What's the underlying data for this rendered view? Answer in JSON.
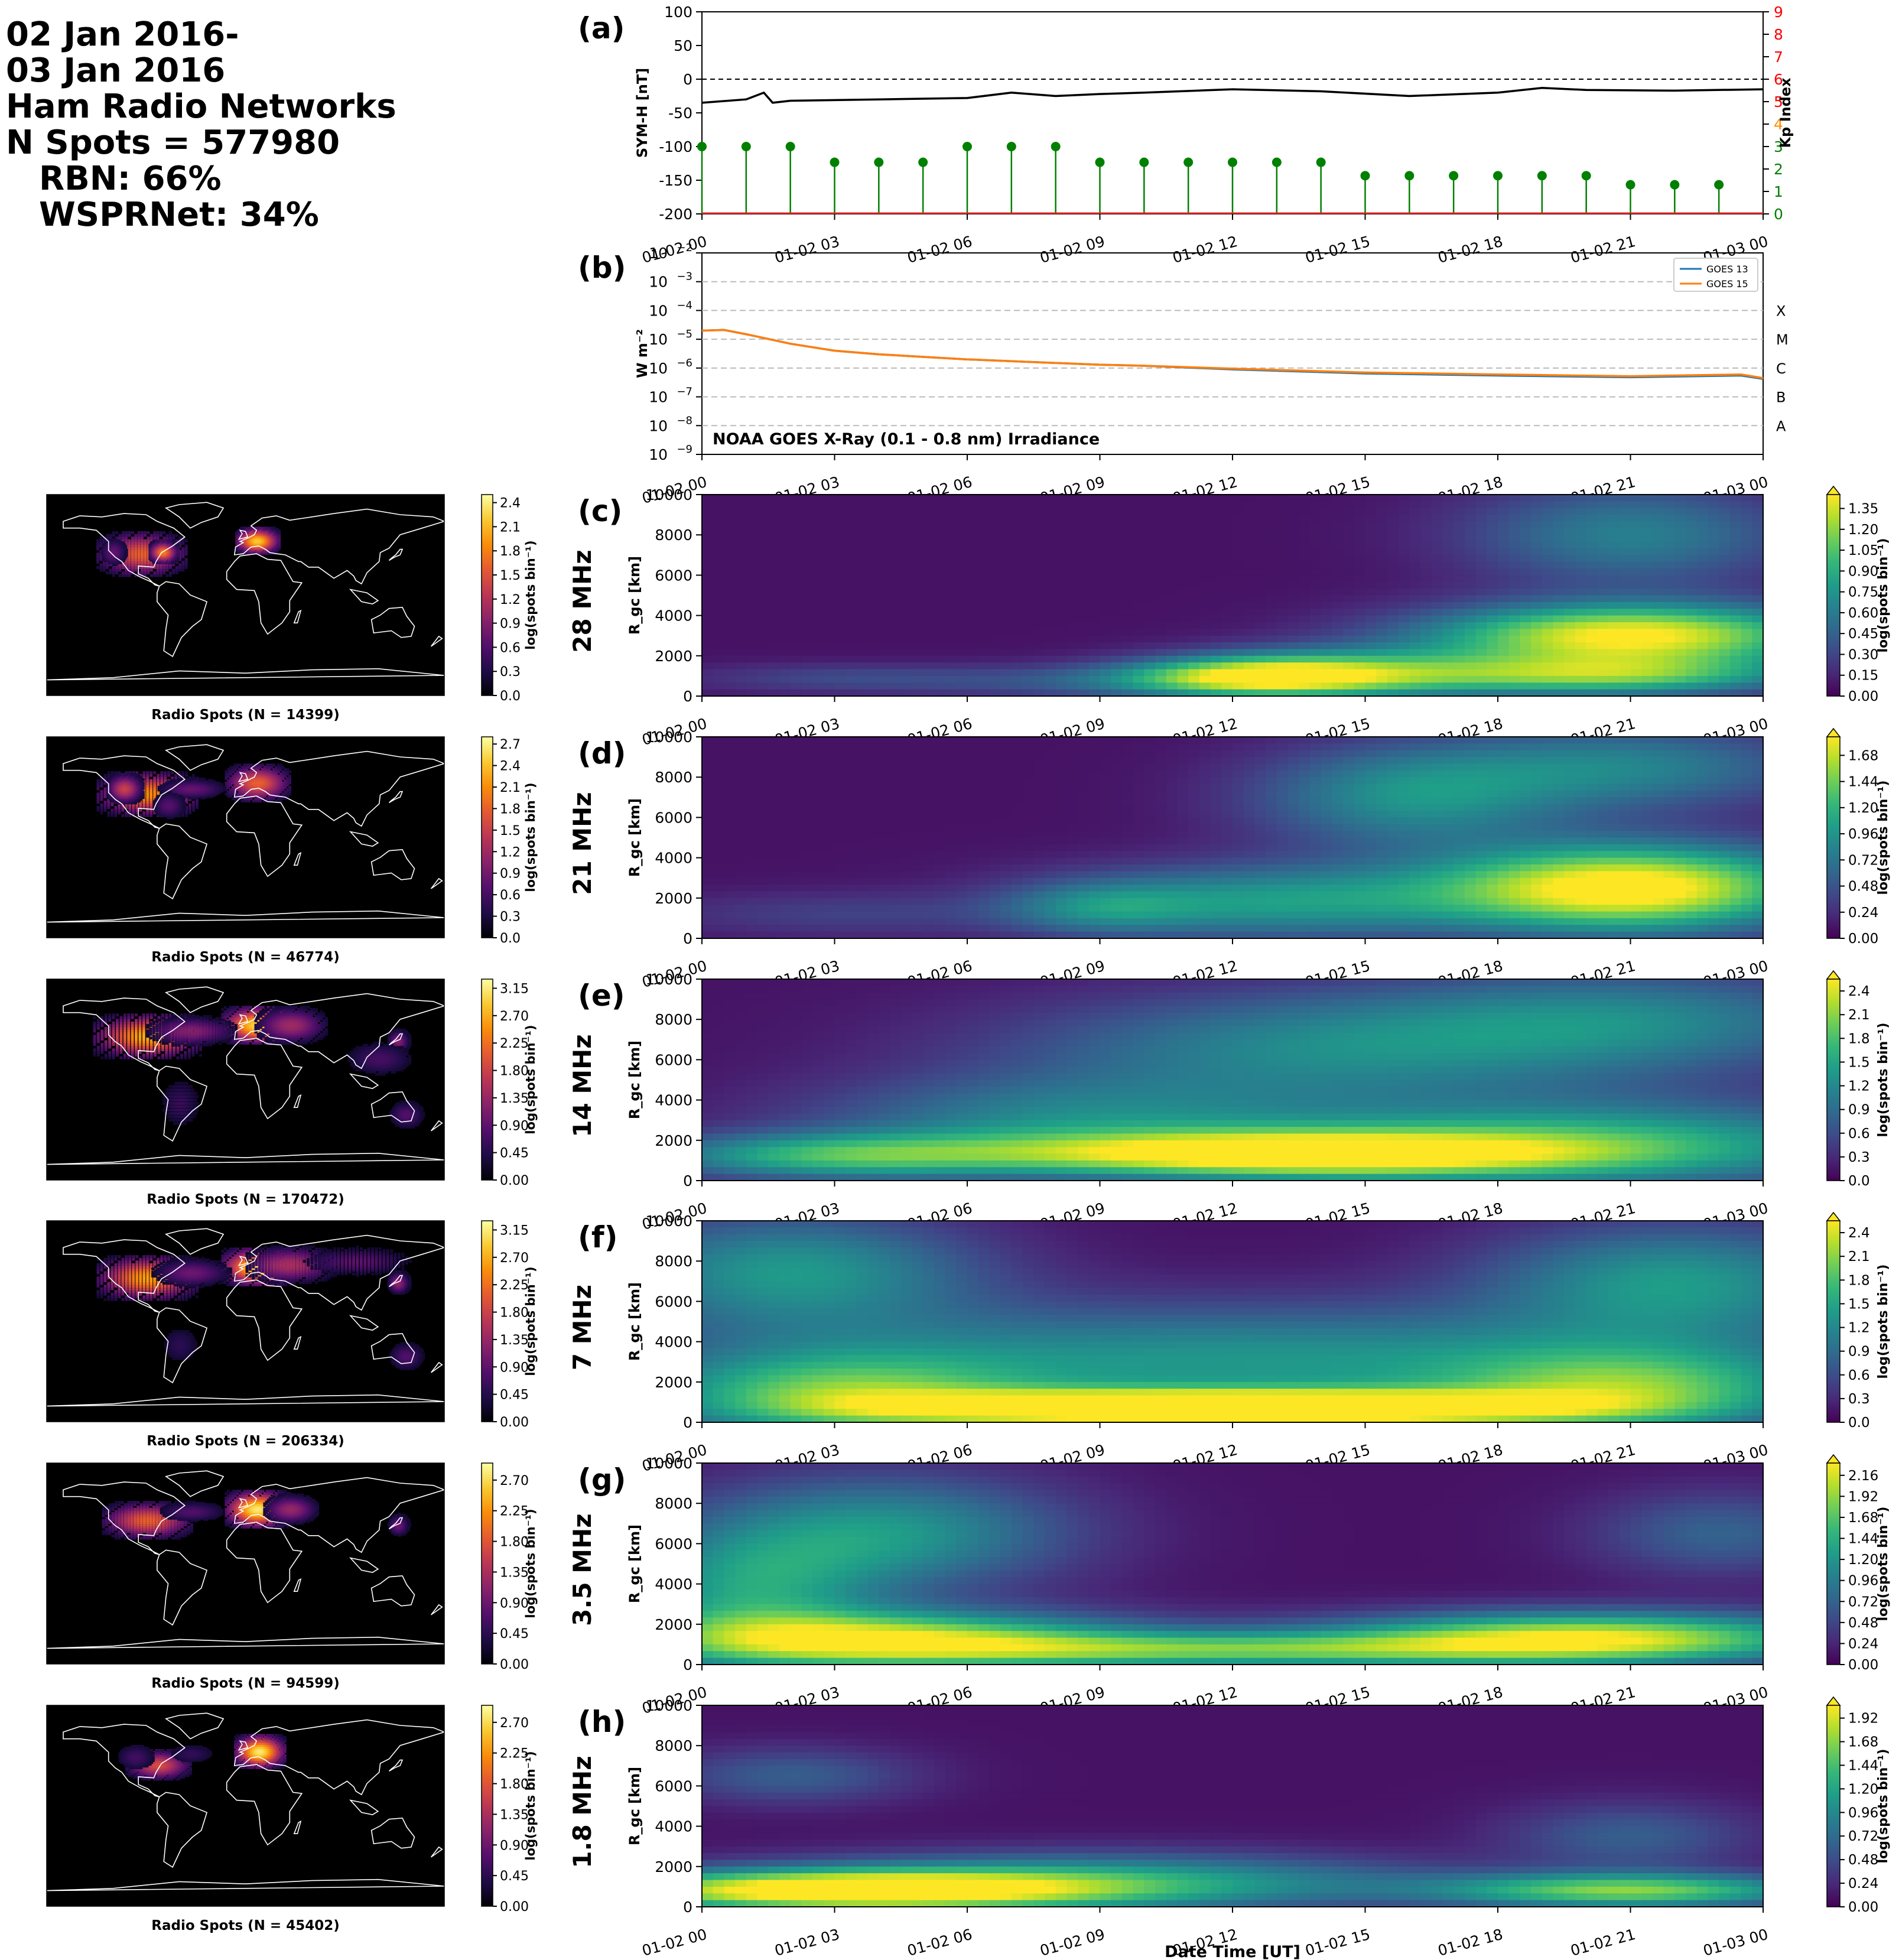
{
  "header": {
    "lines": [
      "02 Jan 2016-",
      "03 Jan 2016",
      "Ham Radio Networks",
      "N Spots = 577980",
      "RBN: 66%",
      "WSPRNet: 34%"
    ]
  },
  "colors": {
    "symh": "#000000",
    "kp_green": "#008000",
    "kp_orange": "#ff8c00",
    "kp_red": "#ff0000",
    "goes13": "#1f77b4",
    "goes15": "#ff7f0e",
    "viridis_low": "#440154",
    "viridis_high": "#fde725",
    "inferno_low": "#000004",
    "inferno_high": "#fcffa4",
    "map_ocean": "#000000",
    "coastline": "#ffffff"
  },
  "time_axis": {
    "tick_labels": [
      "01-02 00",
      "01-02 03",
      "01-02 06",
      "01-02 09",
      "01-02 12",
      "01-02 15",
      "01-02 18",
      "01-02 21",
      "01-03 00"
    ],
    "xlabel": "Date Time [UT]"
  },
  "chart_data": [
    {
      "id": "a",
      "panel_label": "(a)",
      "type": "line",
      "ylabel": "SYM-H [nT]",
      "ylim": [
        -200,
        100
      ],
      "yticks": [
        100,
        50,
        0,
        -50,
        -100,
        -150,
        -200
      ],
      "y2label": "Kp Index",
      "y2lim": [
        0,
        9
      ],
      "y2ticks": [
        9,
        8,
        7,
        6,
        5,
        4,
        3,
        2,
        1,
        0
      ],
      "reference_line": 0,
      "symh": {
        "x_hours": [
          0,
          1,
          1.4,
          1.6,
          2,
          4,
          6,
          7,
          8,
          9,
          10,
          12,
          14,
          16,
          18,
          19,
          20,
          22,
          24
        ],
        "values": [
          -35,
          -30,
          -20,
          -35,
          -32,
          -30,
          -28,
          -20,
          -25,
          -22,
          -20,
          -15,
          -18,
          -25,
          -20,
          -13,
          -16,
          -17,
          -15
        ]
      },
      "kp": {
        "x_hours": [
          0,
          1,
          2,
          3,
          4,
          5,
          6,
          7,
          8,
          9,
          10,
          11,
          12,
          13,
          14,
          15,
          16,
          17,
          18,
          19,
          20,
          21,
          22,
          23
        ],
        "values": [
          3.0,
          3.0,
          3.0,
          2.3,
          2.3,
          2.3,
          3.0,
          3.0,
          3.0,
          2.3,
          2.3,
          2.3,
          2.3,
          2.3,
          2.3,
          1.7,
          1.7,
          1.7,
          1.7,
          1.7,
          1.7,
          1.3,
          1.3,
          1.3
        ]
      }
    },
    {
      "id": "b",
      "panel_label": "(b)",
      "type": "line",
      "ylabel": "W m$^{-2}$",
      "ylabel_display": "W m⁻²",
      "log_scale": true,
      "ylim": [
        1e-09,
        0.01
      ],
      "ytick_exponents": [
        -2,
        -3,
        -4,
        -5,
        -6,
        -7,
        -8,
        -9
      ],
      "flare_classes": [
        "X",
        "M",
        "C",
        "B",
        "A"
      ],
      "annotation": "NOAA GOES X-Ray (0.1 - 0.8 nm) Irradiance",
      "legend": [
        "GOES 13",
        "GOES 15"
      ],
      "legend_placement": "top-right",
      "series": [
        {
          "name": "GOES 13",
          "x_hours": [
            0,
            0.5,
            1,
            2,
            3,
            4,
            6,
            8,
            9,
            10,
            12,
            15,
            18,
            21,
            23.5,
            24
          ],
          "values": [
            2e-05,
            2.1e-05,
            1.5e-05,
            7e-06,
            4e-06,
            3e-06,
            2e-06,
            1.5e-06,
            1.3e-06,
            1.2e-06,
            9e-07,
            6.5e-07,
            5.5e-07,
            4.8e-07,
            5.5e-07,
            4.2e-07
          ]
        },
        {
          "name": "GOES 15",
          "x_hours": [
            0,
            0.5,
            1,
            2,
            3,
            4,
            6,
            8,
            9,
            10,
            12,
            15,
            18,
            21,
            23.5,
            24
          ],
          "values": [
            2e-05,
            2.1e-05,
            1.5e-05,
            7e-06,
            4e-06,
            3e-06,
            2e-06,
            1.5e-06,
            1.3e-06,
            1.2e-06,
            9.5e-07,
            7e-07,
            6e-07,
            5.2e-07,
            6e-07,
            4.5e-07
          ]
        }
      ]
    },
    {
      "id": "c",
      "panel_label": "(c)",
      "band": "28 MHz",
      "type": "heatmap",
      "ylabel": "R_gc [km]",
      "ylim": [
        0,
        10000
      ],
      "yticks": [
        0,
        2000,
        4000,
        6000,
        8000,
        10000
      ],
      "colorbar_label": "log(spots bin⁻¹)",
      "colorbar_ticks": [
        "0.00",
        "0.15",
        "0.30",
        "0.45",
        "0.60",
        "0.75",
        "0.90",
        "1.05",
        "1.20",
        "1.35"
      ],
      "colorbar_max": 1.45,
      "blobs": [
        [
          12.5,
          1000,
          2.0,
          700,
          1.0
        ],
        [
          15,
          1200,
          2.5,
          900,
          0.6
        ],
        [
          21,
          3000,
          3.2,
          1100,
          1.4
        ],
        [
          20.5,
          1000,
          3.0,
          700,
          0.9
        ],
        [
          21,
          8000,
          2.6,
          1800,
          0.55
        ],
        [
          10.5,
          700,
          4.0,
          600,
          0.35
        ],
        [
          3,
          900,
          2.5,
          500,
          0.2
        ]
      ]
    },
    {
      "id": "d",
      "panel_label": "(d)",
      "band": "21 MHz",
      "type": "heatmap",
      "ylabel": "R_gc [km]",
      "ylim": [
        0,
        10000
      ],
      "yticks": [
        0,
        2000,
        4000,
        6000,
        8000,
        10000
      ],
      "colorbar_label": "log(spots bin⁻¹)",
      "colorbar_ticks": [
        "0.00",
        "0.24",
        "0.48",
        "0.72",
        "0.96",
        "1.20",
        "1.44",
        "1.68"
      ],
      "colorbar_max": 1.85,
      "blobs": [
        [
          21,
          2500,
          3.0,
          1500,
          1.9
        ],
        [
          13,
          1800,
          3.5,
          1300,
          0.9
        ],
        [
          16,
          7000,
          2.5,
          1800,
          0.8
        ],
        [
          21,
          8500,
          3.0,
          1500,
          0.7
        ],
        [
          3,
          1200,
          3.0,
          800,
          0.25
        ],
        [
          9,
          1500,
          1.5,
          900,
          0.5
        ]
      ]
    },
    {
      "id": "e",
      "panel_label": "(e)",
      "band": "14 MHz",
      "type": "heatmap",
      "ylabel": "R_gc [km]",
      "ylim": [
        0,
        10000
      ],
      "yticks": [
        0,
        2000,
        4000,
        6000,
        8000,
        10000
      ],
      "colorbar_label": "log(spots bin⁻¹)",
      "colorbar_ticks": [
        "0.0",
        "0.3",
        "0.6",
        "0.9",
        "1.2",
        "1.5",
        "1.8",
        "2.1",
        "2.4"
      ],
      "colorbar_max": 2.55,
      "blobs": [
        [
          13,
          1300,
          4.5,
          800,
          2.4
        ],
        [
          3,
          1200,
          3.0,
          800,
          1.4
        ],
        [
          20,
          1800,
          5.0,
          1500,
          1.5
        ],
        [
          14,
          6500,
          5.0,
          2000,
          1.0
        ],
        [
          21,
          8000,
          4.0,
          1800,
          0.9
        ],
        [
          8,
          3000,
          4.0,
          1500,
          0.9
        ]
      ]
    },
    {
      "id": "f",
      "panel_label": "(f)",
      "band": "7 MHz",
      "type": "heatmap",
      "ylabel": "R_gc [km]",
      "ylim": [
        0,
        10000
      ],
      "yticks": [
        0,
        2000,
        4000,
        6000,
        8000,
        10000
      ],
      "colorbar_label": "log(spots bin⁻¹)",
      "colorbar_ticks": [
        "0.0",
        "0.3",
        "0.6",
        "0.9",
        "1.2",
        "1.5",
        "1.8",
        "2.1",
        "2.4"
      ],
      "colorbar_max": 2.55,
      "blobs": [
        [
          9,
          700,
          3.5,
          600,
          2.3
        ],
        [
          15,
          700,
          3.5,
          600,
          2.4
        ],
        [
          3,
          1200,
          3.0,
          1500,
          1.5
        ],
        [
          12,
          3000,
          8.0,
          2000,
          1.2
        ],
        [
          2,
          7500,
          3.0,
          2000,
          1.2
        ],
        [
          22,
          7000,
          3.0,
          2000,
          1.2
        ],
        [
          21,
          1500,
          3.0,
          1500,
          1.5
        ]
      ]
    },
    {
      "id": "g",
      "panel_label": "(g)",
      "band": "3.5 MHz",
      "type": "heatmap",
      "ylabel": "R_gc [km]",
      "ylim": [
        0,
        10000
      ],
      "yticks": [
        0,
        2000,
        4000,
        6000,
        8000,
        10000
      ],
      "colorbar_label": "log(spots bin⁻¹)",
      "colorbar_ticks": [
        "0.00",
        "0.24",
        "0.48",
        "0.72",
        "0.96",
        "1.20",
        "1.44",
        "1.68",
        "1.92",
        "2.16"
      ],
      "colorbar_max": 2.3,
      "blobs": [
        [
          4,
          1200,
          4.0,
          1000,
          2.0
        ],
        [
          20,
          1300,
          4.0,
          900,
          2.1
        ],
        [
          12,
          700,
          5.0,
          600,
          1.3
        ],
        [
          4,
          6500,
          3.0,
          2000,
          1.1
        ],
        [
          1,
          3500,
          2.0,
          2000,
          1.0
        ],
        [
          23,
          6500,
          2.0,
          1500,
          0.6
        ]
      ]
    },
    {
      "id": "h",
      "panel_label": "(h)",
      "band": "1.8 MHz",
      "type": "heatmap",
      "ylabel": "R_gc [km]",
      "ylim": [
        0,
        10000
      ],
      "yticks": [
        0,
        2000,
        4000,
        6000,
        8000,
        10000
      ],
      "colorbar_label": "log(spots bin⁻¹)",
      "colorbar_ticks": [
        "0.00",
        "0.24",
        "0.48",
        "0.72",
        "0.96",
        "1.20",
        "1.44",
        "1.68",
        "1.92"
      ],
      "colorbar_max": 2.05,
      "blobs": [
        [
          3,
          800,
          4.0,
          700,
          2.0
        ],
        [
          21,
          800,
          3.0,
          600,
          1.5
        ],
        [
          9,
          1200,
          5.0,
          1000,
          1.1
        ],
        [
          2,
          6500,
          2.0,
          1000,
          0.5
        ],
        [
          21,
          3500,
          2.0,
          1200,
          0.5
        ]
      ]
    },
    {
      "id": "map-c",
      "type": "heatmap",
      "title": "Radio Spots (N = 14399)",
      "colormap": "inferno",
      "colorbar_label": "log(spots bin⁻¹)",
      "colorbar_ticks": [
        "0.0",
        "0.3",
        "0.6",
        "0.9",
        "1.2",
        "1.5",
        "1.8",
        "2.1",
        "2.4"
      ],
      "colorbar_max": 2.5,
      "hotspots": [
        [
          -95,
          38,
          25,
          12,
          1.6
        ],
        [
          -75,
          40,
          8,
          6,
          1.8
        ],
        [
          10,
          50,
          12,
          7,
          2.2
        ],
        [
          -120,
          40,
          8,
          8,
          0.7
        ]
      ]
    },
    {
      "id": "map-d",
      "type": "heatmap",
      "title": "Radio Spots (N = 46774)",
      "colormap": "inferno",
      "colorbar_label": "log(spots bin⁻¹)",
      "colorbar_ticks": [
        "0.0",
        "0.3",
        "0.6",
        "0.9",
        "1.2",
        "1.5",
        "1.8",
        "2.1",
        "2.4",
        "2.7"
      ],
      "colorbar_max": 2.8,
      "hotspots": [
        [
          -90,
          40,
          28,
          12,
          2.1
        ],
        [
          -110,
          45,
          10,
          8,
          1.5
        ],
        [
          10,
          50,
          18,
          10,
          1.8
        ],
        [
          -50,
          45,
          20,
          6,
          0.8
        ],
        [
          -70,
          30,
          10,
          8,
          0.7
        ]
      ]
    },
    {
      "id": "map-e",
      "type": "heatmap",
      "title": "Radio Spots (N = 170472)",
      "colormap": "inferno",
      "colorbar_label": "log(spots bin⁻¹)",
      "colorbar_ticks": [
        "0.00",
        "0.45",
        "0.90",
        "1.35",
        "1.80",
        "2.25",
        "2.70",
        "3.15"
      ],
      "colorbar_max": 3.3,
      "hotspots": [
        [
          -90,
          40,
          30,
          12,
          2.7
        ],
        [
          10,
          50,
          20,
          10,
          3.0
        ],
        [
          40,
          50,
          20,
          10,
          1.4
        ],
        [
          138,
          36,
          6,
          6,
          1.2
        ],
        [
          -50,
          45,
          25,
          8,
          1.2
        ],
        [
          -60,
          -20,
          12,
          15,
          0.6
        ],
        [
          120,
          20,
          20,
          10,
          0.7
        ],
        [
          145,
          -30,
          10,
          8,
          0.8
        ]
      ]
    },
    {
      "id": "map-f",
      "type": "heatmap",
      "title": "Radio Spots (N = 206334)",
      "colormap": "inferno",
      "colorbar_label": "log(spots bin⁻¹)",
      "colorbar_ticks": [
        "0.00",
        "0.45",
        "0.90",
        "1.35",
        "1.80",
        "2.25",
        "2.70",
        "3.15"
      ],
      "colorbar_max": 3.3,
      "hotspots": [
        [
          -90,
          40,
          28,
          12,
          2.6
        ],
        [
          10,
          50,
          20,
          10,
          3.1
        ],
        [
          40,
          52,
          25,
          10,
          1.5
        ],
        [
          138,
          36,
          6,
          6,
          1.3
        ],
        [
          -50,
          45,
          22,
          8,
          1.0
        ],
        [
          100,
          55,
          30,
          8,
          0.9
        ],
        [
          145,
          -30,
          10,
          8,
          0.8
        ],
        [
          -60,
          -20,
          12,
          12,
          0.5
        ]
      ]
    },
    {
      "id": "map-g",
      "type": "heatmap",
      "title": "Radio Spots (N = 94599)",
      "colormap": "inferno",
      "colorbar_label": "log(spots bin⁻¹)",
      "colorbar_ticks": [
        "0.00",
        "0.45",
        "0.90",
        "1.35",
        "1.80",
        "2.25",
        "2.70"
      ],
      "colorbar_max": 2.95,
      "hotspots": [
        [
          -90,
          40,
          25,
          10,
          1.9
        ],
        [
          10,
          50,
          18,
          10,
          2.8
        ],
        [
          40,
          50,
          15,
          8,
          1.2
        ],
        [
          -50,
          48,
          20,
          6,
          0.7
        ],
        [
          138,
          36,
          6,
          6,
          0.9
        ]
      ]
    },
    {
      "id": "map-h",
      "type": "heatmap",
      "title": "Radio Spots (N = 45402)",
      "colormap": "inferno",
      "colorbar_label": "log(spots bin⁻¹)",
      "colorbar_ticks": [
        "0.00",
        "0.45",
        "0.90",
        "1.35",
        "1.80",
        "2.25",
        "2.70"
      ],
      "colorbar_max": 2.95,
      "hotspots": [
        [
          -80,
          38,
          18,
          8,
          1.7
        ],
        [
          12,
          50,
          14,
          9,
          2.8
        ],
        [
          -100,
          45,
          12,
          8,
          0.6
        ],
        [
          -50,
          48,
          15,
          6,
          0.5
        ]
      ]
    }
  ]
}
